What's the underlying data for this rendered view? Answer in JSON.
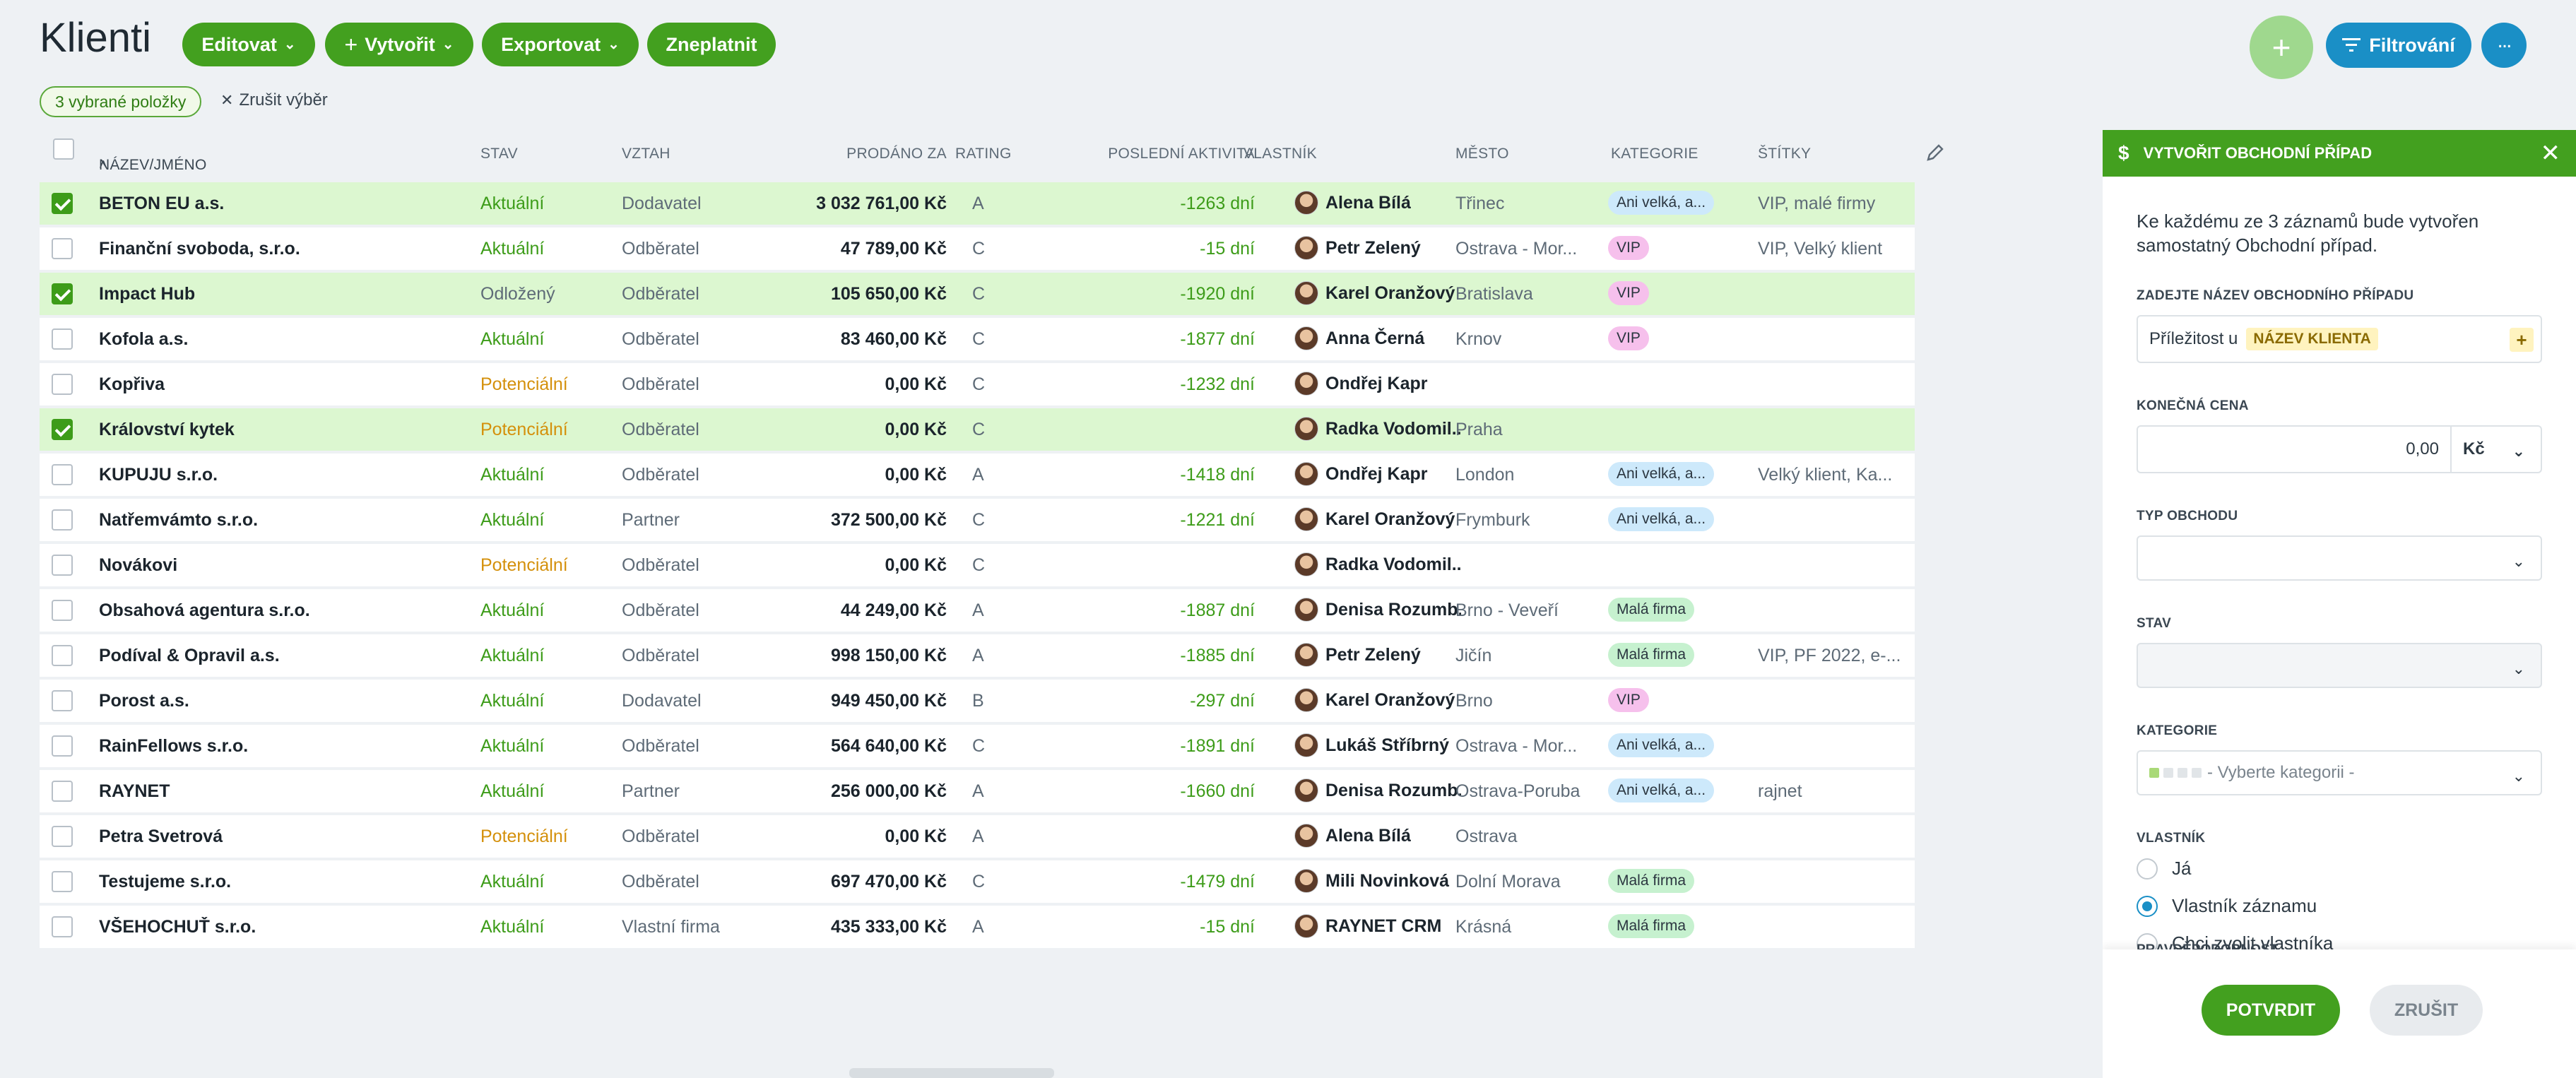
{
  "header": {
    "title": "Klienti",
    "edit_label": "Editovat",
    "create_label": "Vytvořit",
    "export_label": "Exportovat",
    "invalidate_label": "Zneplatnit",
    "filter_label": "Filtrování"
  },
  "selection": {
    "badge": "3 vybrané položky",
    "clear_label": "Zrušit výběr"
  },
  "columns": {
    "name": "Název/Jméno",
    "stav": "Stav",
    "vztah": "Vztah",
    "prodano": "Prodáno za",
    "rating": "Rating",
    "aktivita": "Poslední aktivita",
    "vlastnik": "Vlastník",
    "mesto": "Město",
    "kategorie": "Kategorie",
    "stitky": "Štítky"
  },
  "rows": [
    {
      "name": "BETON EU a.s.",
      "stav": "Aktuální",
      "vztah": "Dodavatel",
      "prodano": "3 032 761,00 Kč",
      "rating": "A",
      "aktivita": "-1263 dní",
      "vlastnik": "Alena Bílá",
      "mesto": "Třinec",
      "kategorie": "Ani velká, a...",
      "stitky": "VIP, malé firmy"
    },
    {
      "name": "Finanční svoboda, s.r.o.",
      "stav": "Aktuální",
      "vztah": "Odběratel",
      "prodano": "47 789,00 Kč",
      "rating": "C",
      "aktivita": "-15 dní",
      "vlastnik": "Petr Zelený",
      "mesto": "Ostrava - Mor...",
      "kategorie": "VIP",
      "stitky": "VIP, Velký klient"
    },
    {
      "name": "Impact Hub",
      "stav": "Odložený",
      "vztah": "Odběratel",
      "prodano": "105 650,00 Kč",
      "rating": "C",
      "aktivita": "-1920 dní",
      "vlastnik": "Karel Oranžový",
      "mesto": "Bratislava",
      "kategorie": "VIP",
      "stitky": ""
    },
    {
      "name": "Kofola a.s.",
      "stav": "Aktuální",
      "vztah": "Odběratel",
      "prodano": "83 460,00 Kč",
      "rating": "C",
      "aktivita": "-1877 dní",
      "vlastnik": "Anna Černá",
      "mesto": "Krnov",
      "kategorie": "VIP",
      "stitky": ""
    },
    {
      "name": "Kopřiva",
      "stav": "Potenciální",
      "vztah": "Odběratel",
      "prodano": "0,00 Kč",
      "rating": "C",
      "aktivita": "-1232 dní",
      "vlastnik": "Ondřej Kapr",
      "mesto": "",
      "kategorie": "",
      "stitky": ""
    },
    {
      "name": "Království kytek",
      "stav": "Potenciální",
      "vztah": "Odběratel",
      "prodano": "0,00 Kč",
      "rating": "C",
      "aktivita": "",
      "vlastnik": "Radka Vodomil...",
      "mesto": "Praha",
      "kategorie": "",
      "stitky": ""
    },
    {
      "name": "KUPUJU s.r.o.",
      "stav": "Aktuální",
      "vztah": "Odběratel",
      "prodano": "0,00 Kč",
      "rating": "A",
      "aktivita": "-1418 dní",
      "vlastnik": "Ondřej Kapr",
      "mesto": "London",
      "kategorie": "Ani velká, a...",
      "stitky": "Velký klient, Ka..."
    },
    {
      "name": "Natřemvámto s.r.o.",
      "stav": "Aktuální",
      "vztah": "Partner",
      "prodano": "372 500,00 Kč",
      "rating": "C",
      "aktivita": "-1221 dní",
      "vlastnik": "Karel Oranžový",
      "mesto": "Frymburk",
      "kategorie": "Ani velká, a...",
      "stitky": ""
    },
    {
      "name": "Novákovi",
      "stav": "Potenciální",
      "vztah": "Odběratel",
      "prodano": "0,00 Kč",
      "rating": "C",
      "aktivita": "",
      "vlastnik": "Radka Vodomil...",
      "mesto": "",
      "kategorie": "",
      "stitky": ""
    },
    {
      "name": "Obsahová agentura s.r.o.",
      "stav": "Aktuální",
      "vztah": "Odběratel",
      "prodano": "44 249,00 Kč",
      "rating": "A",
      "aktivita": "-1887 dní",
      "vlastnik": "Denisa Rozumb...",
      "mesto": "Brno - Veveří",
      "kategorie": "Malá firma",
      "stitky": ""
    },
    {
      "name": "Podíval & Opravil a.s.",
      "stav": "Aktuální",
      "vztah": "Odběratel",
      "prodano": "998 150,00 Kč",
      "rating": "A",
      "aktivita": "-1885 dní",
      "vlastnik": "Petr Zelený",
      "mesto": "Jičín",
      "kategorie": "Malá firma",
      "stitky": "VIP, PF 2022, e-..."
    },
    {
      "name": "Porost a.s.",
      "stav": "Aktuální",
      "vztah": "Dodavatel",
      "prodano": "949 450,00 Kč",
      "rating": "B",
      "aktivita": "-297 dní",
      "vlastnik": "Karel Oranžový",
      "mesto": "Brno",
      "kategorie": "VIP",
      "stitky": ""
    },
    {
      "name": "RainFellows s.r.o.",
      "stav": "Aktuální",
      "vztah": "Odběratel",
      "prodano": "564 640,00 Kč",
      "rating": "C",
      "aktivita": "-1891 dní",
      "vlastnik": "Lukáš Stříbrný",
      "mesto": "Ostrava - Mor...",
      "kategorie": "Ani velká, a...",
      "stitky": ""
    },
    {
      "name": "RAYNET",
      "stav": "Aktuální",
      "vztah": "Partner",
      "prodano": "256 000,00 Kč",
      "rating": "A",
      "aktivita": "-1660 dní",
      "vlastnik": "Denisa Rozumb...",
      "mesto": "Ostrava-Poruba",
      "kategorie": "Ani velká, a...",
      "stitky": "rajnet"
    },
    {
      "name": "Petra Svetrová",
      "stav": "Potenciální",
      "vztah": "Odběratel",
      "prodano": "0,00 Kč",
      "rating": "A",
      "aktivita": "",
      "vlastnik": "Alena Bílá",
      "mesto": "Ostrava",
      "kategorie": "",
      "stitky": ""
    },
    {
      "name": "Testujeme s.r.o.",
      "stav": "Aktuální",
      "vztah": "Odběratel",
      "prodano": "697 470,00 Kč",
      "rating": "C",
      "aktivita": "-1479 dní",
      "vlastnik": "Mili Novinková",
      "mesto": "Dolní Morava",
      "kategorie": "Malá firma",
      "stitky": ""
    },
    {
      "name": "VŠEHOCHUŤ s.r.o.",
      "stav": "Aktuální",
      "vztah": "Vlastní firma",
      "prodano": "435 333,00 Kč",
      "rating": "A",
      "aktivita": "-15 dní",
      "vlastnik": "RAYNET CRM",
      "mesto": "Krásná",
      "kategorie": "Malá firma",
      "stitky": ""
    }
  ],
  "selected_rows": [
    0,
    2,
    5
  ],
  "panel": {
    "title": "Vytvořit obchodní případ",
    "description": "Ke každému ze 3 záznamů bude vytvořen samostatný Obchodní případ.",
    "name_label": "Zadejte název obchodního případu",
    "name_prefix": "Příležitost u",
    "name_chip": "NÁZEV KLIENTA",
    "price_label": "Konečná cena",
    "price_value": "0,00",
    "currency": "Kč",
    "type_label": "Typ obchodu",
    "stav_label": "Stav",
    "category_label": "Kategorie",
    "category_placeholder": "- Vyberte kategorii -",
    "owner_label": "Vlastník",
    "owner_options": [
      "Já",
      "Vlastník záznamu",
      "Chci zvolit vlastníka"
    ],
    "owner_selected": 1,
    "cut_label": "PRAVDĚPODOBNOST",
    "confirm_label": "POTVRDIT",
    "cancel_label": "ZRUŠIT"
  },
  "colors": {
    "accent_green": "#43a01f",
    "accent_blue": "#1a8fc6",
    "stav_aktualni": "#3d9c19",
    "stav_potencialni": "#d4900b"
  }
}
